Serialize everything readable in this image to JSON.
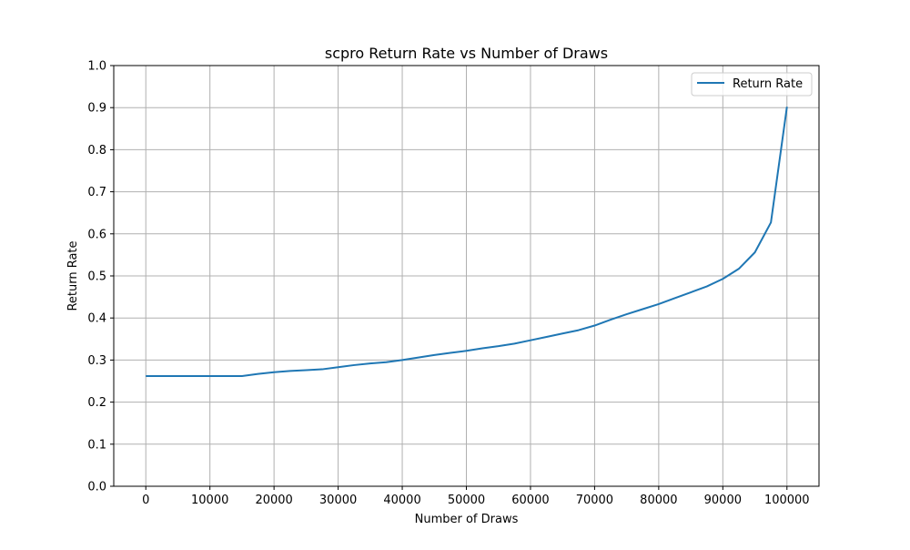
{
  "chart_data": {
    "type": "line",
    "title": "scpro Return Rate vs Number of Draws",
    "xlabel": "Number of Draws",
    "ylabel": "Return Rate",
    "xlim": [
      -5000,
      105000
    ],
    "ylim": [
      0,
      1.0
    ],
    "xticks": [
      0,
      10000,
      20000,
      30000,
      40000,
      50000,
      60000,
      70000,
      80000,
      90000,
      100000
    ],
    "xtick_labels": [
      "0",
      "10000",
      "20000",
      "30000",
      "40000",
      "50000",
      "60000",
      "70000",
      "80000",
      "90000",
      "100000"
    ],
    "yticks": [
      0.0,
      0.1,
      0.2,
      0.3,
      0.4,
      0.5,
      0.6,
      0.7,
      0.8,
      0.9,
      1.0
    ],
    "ytick_labels": [
      "0.0",
      "0.1",
      "0.2",
      "0.3",
      "0.4",
      "0.5",
      "0.6",
      "0.7",
      "0.8",
      "0.9",
      "1.0"
    ],
    "grid": true,
    "legend_position": "top-right",
    "series": [
      {
        "name": "Return Rate",
        "color": "#1f77b4",
        "x": [
          0,
          2500,
          5000,
          7500,
          10000,
          12500,
          15000,
          17500,
          20000,
          22500,
          25000,
          27500,
          30000,
          32500,
          35000,
          37500,
          40000,
          42500,
          45000,
          47500,
          50000,
          52500,
          55000,
          57500,
          60000,
          62500,
          65000,
          67500,
          70000,
          72500,
          75000,
          77500,
          80000,
          82500,
          85000,
          87500,
          90000,
          92500,
          95000,
          97500,
          100000
        ],
        "y": [
          0.262,
          0.262,
          0.262,
          0.262,
          0.262,
          0.262,
          0.262,
          0.267,
          0.271,
          0.274,
          0.276,
          0.278,
          0.283,
          0.288,
          0.292,
          0.295,
          0.3,
          0.306,
          0.312,
          0.317,
          0.322,
          0.328,
          0.333,
          0.339,
          0.347,
          0.355,
          0.363,
          0.371,
          0.382,
          0.396,
          0.409,
          0.421,
          0.433,
          0.447,
          0.461,
          0.475,
          0.493,
          0.517,
          0.556,
          0.627,
          0.902
        ]
      }
    ]
  }
}
